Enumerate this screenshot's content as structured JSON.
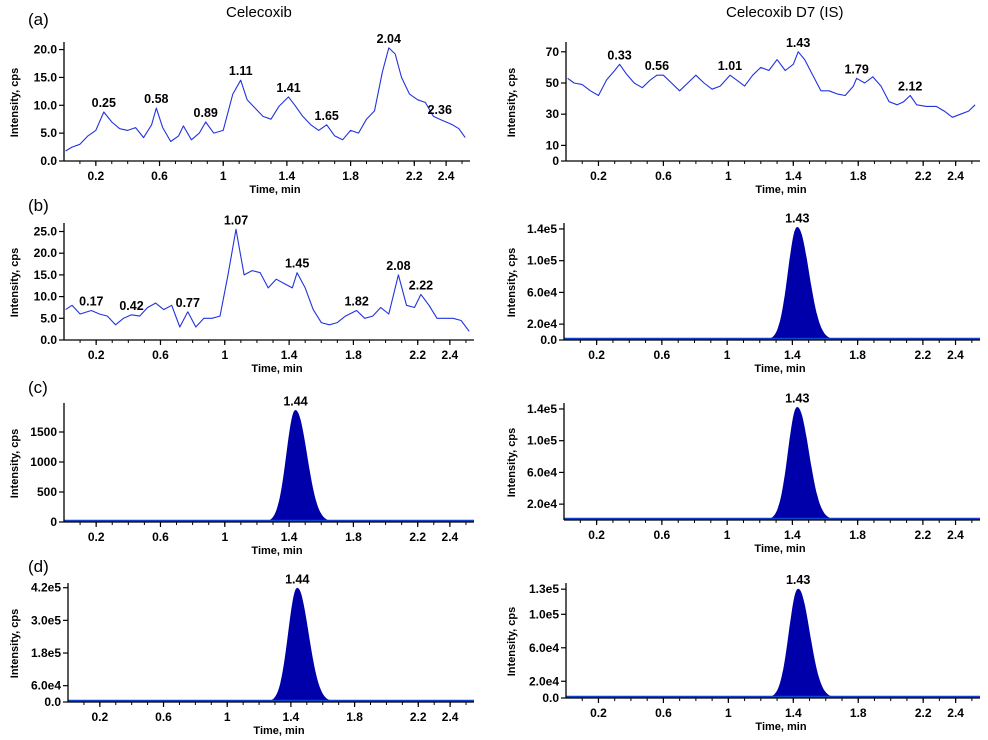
{
  "figure": {
    "column_titles": [
      "Celecoxib",
      "Celecoxib D7 (IS)"
    ],
    "row_labels": [
      "(a)",
      "(b)",
      "(c)",
      "(d)"
    ],
    "colors": {
      "trace": "#2233dd",
      "fill": "#0000aa",
      "baseline": "#1144cc",
      "axis": "#000000"
    }
  },
  "chart_data": [
    {
      "id": "a-left",
      "type": "line",
      "style": "trace",
      "xlabel": "Time, min",
      "ylabel": "Intensity, cps",
      "xlim": [
        0.0,
        2.55
      ],
      "ylim": [
        0.0,
        21.0
      ],
      "xticks": [
        0.2,
        0.6,
        1.0,
        1.4,
        1.8,
        2.2,
        2.4
      ],
      "yticks": [
        0.0,
        5.0,
        10.0,
        15.0,
        20.0
      ],
      "ytick_labels": [
        "0.0",
        "5.0",
        "10.0",
        "15.0",
        "20.0"
      ],
      "points": [
        [
          0.01,
          1.8
        ],
        [
          0.05,
          2.5
        ],
        [
          0.1,
          3.0
        ],
        [
          0.15,
          4.5
        ],
        [
          0.2,
          5.5
        ],
        [
          0.25,
          8.8
        ],
        [
          0.3,
          7.0
        ],
        [
          0.35,
          5.8
        ],
        [
          0.4,
          5.5
        ],
        [
          0.45,
          6.0
        ],
        [
          0.5,
          4.2
        ],
        [
          0.55,
          6.5
        ],
        [
          0.58,
          9.5
        ],
        [
          0.62,
          6.0
        ],
        [
          0.67,
          3.5
        ],
        [
          0.72,
          4.5
        ],
        [
          0.75,
          6.3
        ],
        [
          0.8,
          3.8
        ],
        [
          0.85,
          5.0
        ],
        [
          0.89,
          7.0
        ],
        [
          0.94,
          5.0
        ],
        [
          1.0,
          5.5
        ],
        [
          1.06,
          12.0
        ],
        [
          1.11,
          14.5
        ],
        [
          1.15,
          11.0
        ],
        [
          1.2,
          9.5
        ],
        [
          1.25,
          8.0
        ],
        [
          1.3,
          7.5
        ],
        [
          1.35,
          9.8
        ],
        [
          1.41,
          11.5
        ],
        [
          1.45,
          10.0
        ],
        [
          1.5,
          8.0
        ],
        [
          1.55,
          6.5
        ],
        [
          1.6,
          5.5
        ],
        [
          1.65,
          6.5
        ],
        [
          1.7,
          4.5
        ],
        [
          1.75,
          3.8
        ],
        [
          1.8,
          5.5
        ],
        [
          1.85,
          5.0
        ],
        [
          1.9,
          7.5
        ],
        [
          1.95,
          9.0
        ],
        [
          2.0,
          16.0
        ],
        [
          2.04,
          20.3
        ],
        [
          2.08,
          19.2
        ],
        [
          2.12,
          15.0
        ],
        [
          2.17,
          12.0
        ],
        [
          2.22,
          11.0
        ],
        [
          2.27,
          10.5
        ],
        [
          2.32,
          8.0
        ],
        [
          2.36,
          7.5
        ],
        [
          2.4,
          7.0
        ],
        [
          2.44,
          6.5
        ],
        [
          2.48,
          5.8
        ],
        [
          2.52,
          4.2
        ]
      ],
      "peak_labels": [
        {
          "x": 0.25,
          "y": 8.8,
          "text": "0.25"
        },
        {
          "x": 0.58,
          "y": 9.5,
          "text": "0.58"
        },
        {
          "x": 0.89,
          "y": 7.0,
          "text": "0.89"
        },
        {
          "x": 1.11,
          "y": 14.5,
          "text": "1.11"
        },
        {
          "x": 1.41,
          "y": 11.5,
          "text": "1.41"
        },
        {
          "x": 1.65,
          "y": 6.5,
          "text": "1.65"
        },
        {
          "x": 2.04,
          "y": 20.3,
          "text": "2.04"
        },
        {
          "x": 2.36,
          "y": 7.5,
          "text": "2.36"
        }
      ]
    },
    {
      "id": "a-right",
      "type": "line",
      "style": "trace",
      "xlabel": "Time, min",
      "ylabel": "Intensity, cps",
      "xlim": [
        0.0,
        2.55
      ],
      "ylim": [
        0.0,
        75.0
      ],
      "xticks": [
        0.2,
        0.6,
        1.0,
        1.4,
        1.8,
        2.2,
        2.4
      ],
      "yticks": [
        0,
        10,
        30,
        50,
        70
      ],
      "ytick_labels": [
        "0",
        "10",
        "30",
        "50",
        "70"
      ],
      "points": [
        [
          0.01,
          53
        ],
        [
          0.05,
          50
        ],
        [
          0.1,
          49
        ],
        [
          0.15,
          45
        ],
        [
          0.2,
          42
        ],
        [
          0.25,
          52
        ],
        [
          0.3,
          58
        ],
        [
          0.33,
          62
        ],
        [
          0.37,
          56
        ],
        [
          0.42,
          50
        ],
        [
          0.47,
          47
        ],
        [
          0.52,
          52
        ],
        [
          0.56,
          55
        ],
        [
          0.6,
          55
        ],
        [
          0.65,
          50
        ],
        [
          0.7,
          45
        ],
        [
          0.75,
          50
        ],
        [
          0.8,
          55
        ],
        [
          0.85,
          50
        ],
        [
          0.9,
          46
        ],
        [
          0.95,
          48
        ],
        [
          1.01,
          55
        ],
        [
          1.05,
          52
        ],
        [
          1.1,
          48
        ],
        [
          1.15,
          55
        ],
        [
          1.2,
          60
        ],
        [
          1.25,
          58
        ],
        [
          1.3,
          65
        ],
        [
          1.35,
          58
        ],
        [
          1.4,
          62
        ],
        [
          1.43,
          70
        ],
        [
          1.47,
          65
        ],
        [
          1.52,
          55
        ],
        [
          1.57,
          45
        ],
        [
          1.62,
          45
        ],
        [
          1.67,
          43
        ],
        [
          1.72,
          42
        ],
        [
          1.77,
          48
        ],
        [
          1.79,
          53
        ],
        [
          1.84,
          50
        ],
        [
          1.89,
          54
        ],
        [
          1.94,
          48
        ],
        [
          1.99,
          38
        ],
        [
          2.04,
          36
        ],
        [
          2.08,
          38
        ],
        [
          2.12,
          42
        ],
        [
          2.16,
          36
        ],
        [
          2.22,
          35
        ],
        [
          2.28,
          35
        ],
        [
          2.33,
          32
        ],
        [
          2.38,
          28
        ],
        [
          2.43,
          30
        ],
        [
          2.48,
          32
        ],
        [
          2.52,
          36
        ]
      ],
      "peak_labels": [
        {
          "x": 0.33,
          "y": 62,
          "text": "0.33"
        },
        {
          "x": 0.56,
          "y": 55,
          "text": "0.56"
        },
        {
          "x": 1.01,
          "y": 55,
          "text": "1.01"
        },
        {
          "x": 1.43,
          "y": 70,
          "text": "1.43"
        },
        {
          "x": 1.79,
          "y": 53,
          "text": "1.79"
        },
        {
          "x": 2.12,
          "y": 42,
          "text": "2.12"
        }
      ]
    },
    {
      "id": "b-left",
      "type": "line",
      "style": "trace",
      "xlabel": "Time, min",
      "ylabel": "Intensity, cps",
      "xlim": [
        0.0,
        2.55
      ],
      "ylim": [
        0.0,
        26.5
      ],
      "xticks": [
        0.2,
        0.6,
        1.0,
        1.4,
        1.8,
        2.2,
        2.4
      ],
      "yticks": [
        0.0,
        5.0,
        10.0,
        15.0,
        20.0,
        25.0
      ],
      "ytick_labels": [
        "0.0",
        "5.0",
        "10.0",
        "15.0",
        "20.0",
        "25.0"
      ],
      "points": [
        [
          0.01,
          7.0
        ],
        [
          0.05,
          8.0
        ],
        [
          0.1,
          6.0
        ],
        [
          0.17,
          6.8
        ],
        [
          0.22,
          6.0
        ],
        [
          0.27,
          5.5
        ],
        [
          0.32,
          3.5
        ],
        [
          0.37,
          5.0
        ],
        [
          0.42,
          5.8
        ],
        [
          0.47,
          5.5
        ],
        [
          0.52,
          7.5
        ],
        [
          0.57,
          8.5
        ],
        [
          0.62,
          7.0
        ],
        [
          0.67,
          8.0
        ],
        [
          0.72,
          3.0
        ],
        [
          0.77,
          6.5
        ],
        [
          0.82,
          3.0
        ],
        [
          0.87,
          5.0
        ],
        [
          0.92,
          5.0
        ],
        [
          0.97,
          5.5
        ],
        [
          1.02,
          15.0
        ],
        [
          1.07,
          25.5
        ],
        [
          1.12,
          15.0
        ],
        [
          1.17,
          16.0
        ],
        [
          1.22,
          15.5
        ],
        [
          1.27,
          12.0
        ],
        [
          1.32,
          14.0
        ],
        [
          1.37,
          13.0
        ],
        [
          1.42,
          12.0
        ],
        [
          1.45,
          15.5
        ],
        [
          1.5,
          12.0
        ],
        [
          1.55,
          7.0
        ],
        [
          1.6,
          4.0
        ],
        [
          1.65,
          3.5
        ],
        [
          1.7,
          4.0
        ],
        [
          1.75,
          5.5
        ],
        [
          1.82,
          6.8
        ],
        [
          1.87,
          5.0
        ],
        [
          1.92,
          5.5
        ],
        [
          1.97,
          7.5
        ],
        [
          2.02,
          6.0
        ],
        [
          2.08,
          15.0
        ],
        [
          2.13,
          8.0
        ],
        [
          2.18,
          7.5
        ],
        [
          2.22,
          10.5
        ],
        [
          2.27,
          8.0
        ],
        [
          2.32,
          5.0
        ],
        [
          2.37,
          5.0
        ],
        [
          2.42,
          5.0
        ],
        [
          2.47,
          4.5
        ],
        [
          2.52,
          2.0
        ]
      ],
      "peak_labels": [
        {
          "x": 0.17,
          "y": 6.8,
          "text": "0.17"
        },
        {
          "x": 0.42,
          "y": 5.8,
          "text": "0.42"
        },
        {
          "x": 0.77,
          "y": 6.5,
          "text": "0.77"
        },
        {
          "x": 1.07,
          "y": 25.5,
          "text": "1.07"
        },
        {
          "x": 1.45,
          "y": 15.5,
          "text": "1.45"
        },
        {
          "x": 1.82,
          "y": 6.8,
          "text": "1.82"
        },
        {
          "x": 2.08,
          "y": 15.0,
          "text": "2.08"
        },
        {
          "x": 2.22,
          "y": 10.5,
          "text": "2.22"
        }
      ]
    },
    {
      "id": "b-right",
      "type": "area",
      "style": "gaussian",
      "xlabel": "Time, min",
      "ylabel": "Intensity, cps",
      "xlim": [
        0.0,
        2.55
      ],
      "ylim": [
        0.0,
        145000.0
      ],
      "xticks": [
        0.2,
        0.6,
        1.0,
        1.4,
        1.8,
        2.2,
        2.4
      ],
      "yticks": [
        0.0,
        20000.0,
        60000.0,
        100000.0,
        140000.0
      ],
      "ytick_labels": [
        "0.0",
        "2.0e4",
        "6.0e4",
        "1.0e5",
        "1.4e5"
      ],
      "peak": {
        "center": 1.43,
        "height": 142000.0,
        "sigma": 0.055,
        "tail": 1.25,
        "label": "1.43"
      }
    },
    {
      "id": "c-left",
      "type": "area",
      "style": "gaussian",
      "xlabel": "Time, min",
      "ylabel": "Intensity, cps",
      "xlim": [
        0.0,
        2.55
      ],
      "ylim": [
        0.0,
        1950.0
      ],
      "xticks": [
        0.2,
        0.6,
        1.0,
        1.4,
        1.8,
        2.2,
        2.4
      ],
      "yticks": [
        0.0,
        500.0,
        1000.0,
        1500.0
      ],
      "ytick_labels": [
        "0",
        "500",
        "1000",
        "1500"
      ],
      "peak": {
        "center": 1.44,
        "height": 1860.0,
        "sigma": 0.055,
        "tail": 1.25,
        "label": "1.44"
      }
    },
    {
      "id": "c-right",
      "type": "area",
      "style": "gaussian",
      "xlabel": "Time, min",
      "ylabel": "Intensity, cps",
      "xlim": [
        0.0,
        2.55
      ],
      "ylim": [
        0.0,
        145000.0
      ],
      "xticks": [
        0.2,
        0.6,
        1.0,
        1.4,
        1.8,
        2.2,
        2.4
      ],
      "yticks": [
        20000.0,
        60000.0,
        100000.0,
        140000.0
      ],
      "ytick_labels": [
        "2.0e4",
        "6.0e4",
        "1.0e5",
        "1.4e5"
      ],
      "peak": {
        "center": 1.43,
        "height": 142000.0,
        "sigma": 0.055,
        "tail": 1.25,
        "label": "1.43"
      }
    },
    {
      "id": "d-left",
      "type": "area",
      "style": "gaussian",
      "xlabel": "Time, min",
      "ylabel": "Intensity, cps",
      "xlim": [
        0.0,
        2.55
      ],
      "ylim": [
        0.0,
        430000.0
      ],
      "xticks": [
        0.2,
        0.6,
        1.0,
        1.4,
        1.8,
        2.2,
        2.4
      ],
      "yticks": [
        0.0,
        60000.0,
        180000.0,
        300000.0,
        420000.0
      ],
      "ytick_labels": [
        "0.0",
        "6.0e4",
        "1.8e5",
        "3.0e5",
        "4.2e5"
      ],
      "peak": {
        "center": 1.44,
        "height": 418000.0,
        "sigma": 0.055,
        "tail": 1.25,
        "label": "1.44"
      }
    },
    {
      "id": "d-right",
      "type": "area",
      "style": "gaussian",
      "xlabel": "Time, min",
      "ylabel": "Intensity, cps",
      "xlim": [
        0.0,
        2.55
      ],
      "ylim": [
        0.0,
        135000.0
      ],
      "xticks": [
        0.2,
        0.6,
        1.0,
        1.4,
        1.8,
        2.2,
        2.4
      ],
      "yticks": [
        0.0,
        20000.0,
        60000.0,
        100000.0,
        130000.0
      ],
      "ytick_labels": [
        "0.0",
        "2.0e4",
        "6.0e4",
        "1.0e5",
        "1.3e5"
      ],
      "peak": {
        "center": 1.43,
        "height": 130000.0,
        "sigma": 0.055,
        "tail": 1.25,
        "label": "1.43"
      }
    }
  ]
}
